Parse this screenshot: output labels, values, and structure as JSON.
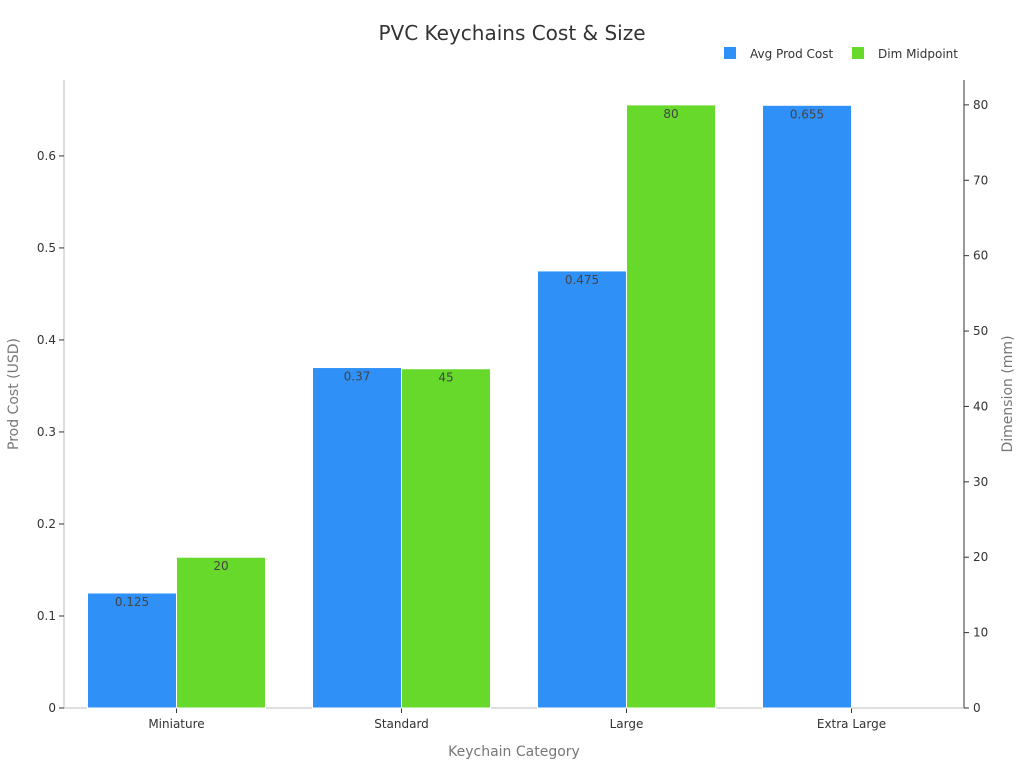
{
  "colors": {
    "cost": "#2f90f8",
    "dim": "#66d92a",
    "axis": "#bdbdbd",
    "text": "#333333"
  },
  "chart_data": {
    "type": "bar",
    "title": "PVC Keychains Cost & Size",
    "categories": [
      "Miniature",
      "Standard",
      "Large",
      "Extra Large"
    ],
    "series": [
      {
        "name": "Avg Prod Cost",
        "axis": "left",
        "values": [
          0.125,
          0.37,
          0.475,
          0.655
        ],
        "labels": [
          "0.125",
          "0.37",
          "0.475",
          "0.655"
        ]
      },
      {
        "name": "Dim Midpoint",
        "axis": "right",
        "values": [
          20,
          45,
          80,
          null
        ],
        "labels": [
          "20",
          "45",
          "80",
          ""
        ]
      }
    ],
    "xlabel": "Keychain Category",
    "ylabel": "Prod Cost (USD)",
    "y2label": "Dimension (mm)",
    "ylim": [
      0,
      0.6825
    ],
    "y2lim": [
      0,
      83.3
    ],
    "yticks": [
      "0",
      "0.1",
      "0.2",
      "0.3",
      "0.4",
      "0.5",
      "0.6"
    ],
    "y2ticks": [
      "0",
      "10",
      "20",
      "30",
      "40",
      "50",
      "60",
      "70",
      "80"
    ],
    "legend": "top-right",
    "grid": false
  }
}
